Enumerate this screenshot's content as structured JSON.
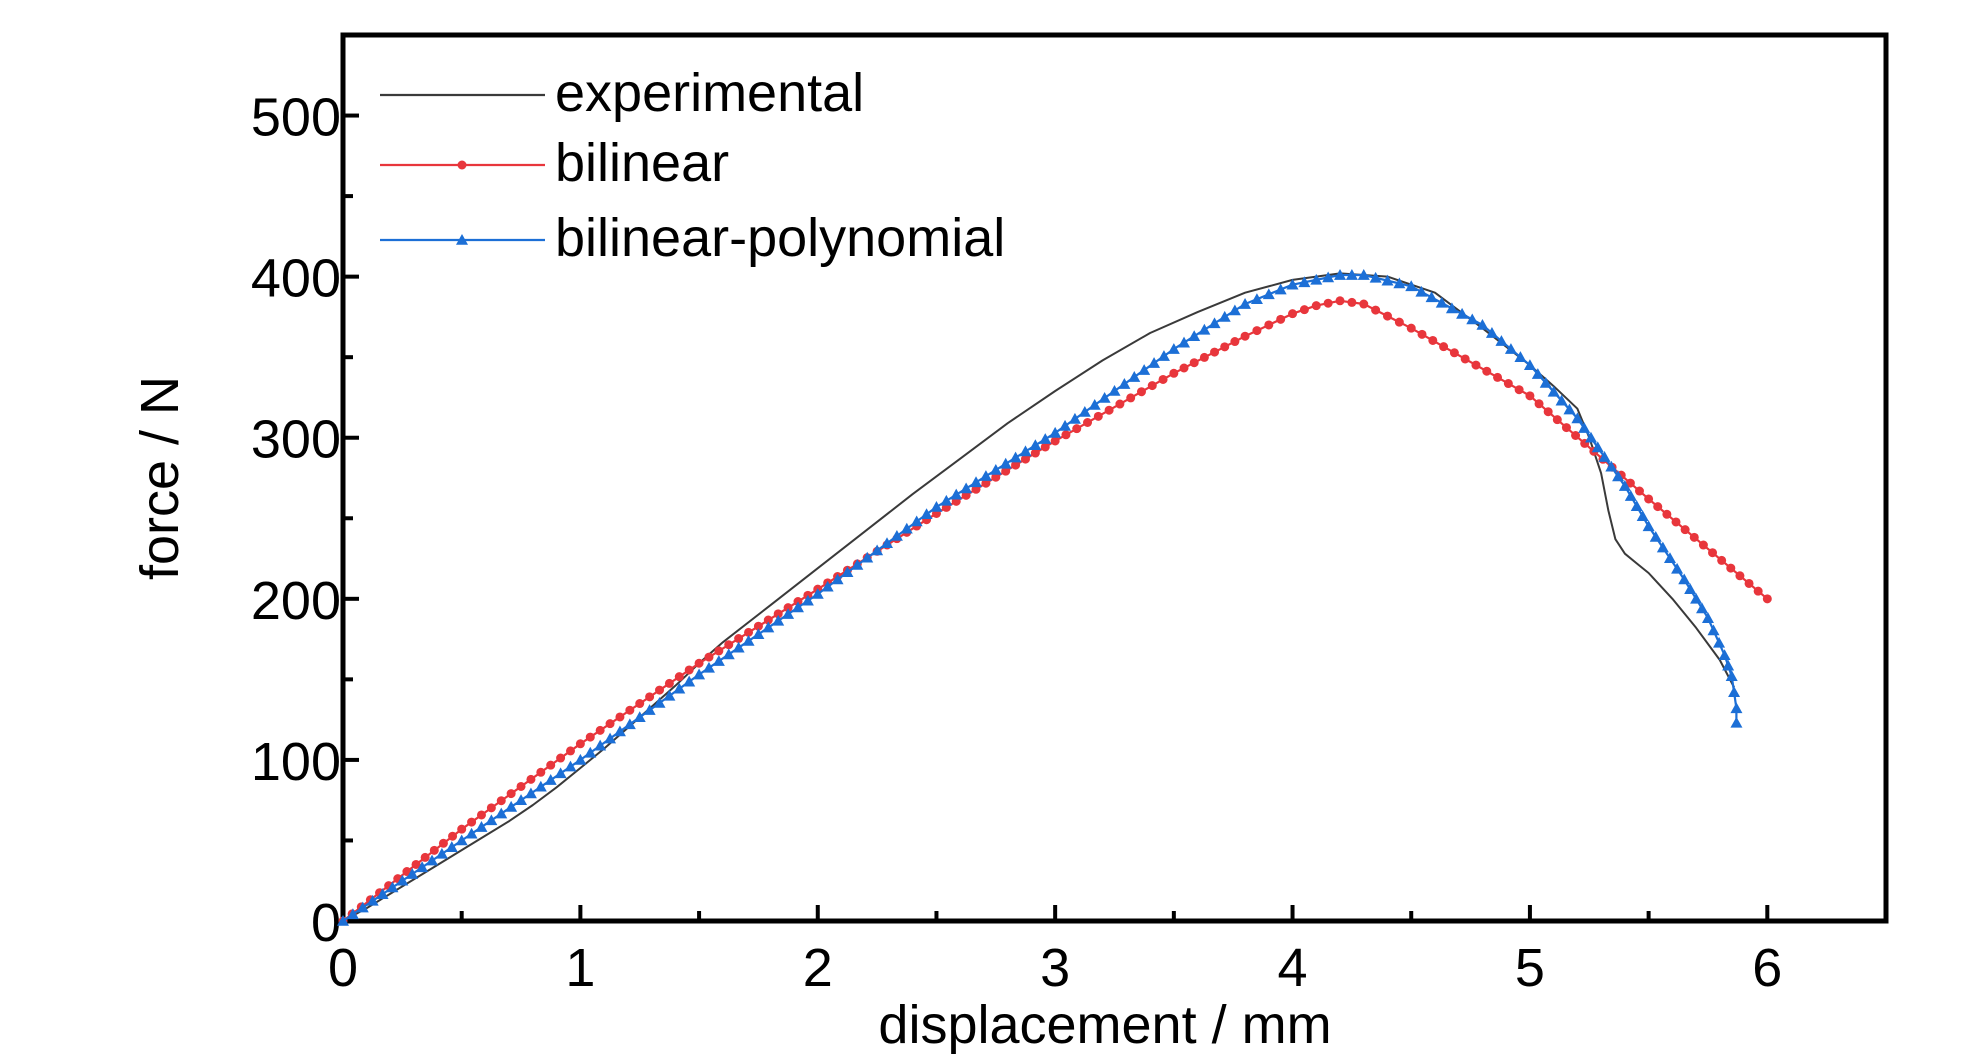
{
  "chart_data": {
    "type": "line",
    "xlabel": "displacement / mm",
    "ylabel": "force / N",
    "xlim": [
      0,
      6.5
    ],
    "ylim": [
      0,
      550
    ],
    "x_ticks": [
      0,
      1,
      2,
      3,
      4,
      5,
      6
    ],
    "x_tick_labels": [
      "0",
      "1",
      "2",
      "3",
      "4",
      "5",
      "6"
    ],
    "x_minor_step": 0.5,
    "y_ticks": [
      0,
      100,
      200,
      300,
      400,
      500
    ],
    "y_tick_labels": [
      "0",
      "100",
      "200",
      "300",
      "400",
      "500"
    ],
    "y_minor_step": 50,
    "grid": false,
    "legend_position": "top-left",
    "series": [
      {
        "name": "experimental",
        "color": "#3a3a3a",
        "marker": "none",
        "x": [
          0,
          0.1,
          0.2,
          0.3,
          0.4,
          0.5,
          0.6,
          0.7,
          0.8,
          0.9,
          1.0,
          1.1,
          1.2,
          1.3,
          1.4,
          1.5,
          1.6,
          1.8,
          2.0,
          2.2,
          2.4,
          2.6,
          2.8,
          3.0,
          3.2,
          3.4,
          3.6,
          3.8,
          4.0,
          4.2,
          4.4,
          4.6,
          4.8,
          5.0,
          5.1,
          5.2,
          5.25,
          5.3,
          5.33,
          5.36,
          5.4,
          5.45,
          5.5,
          5.6,
          5.7,
          5.8,
          5.86
        ],
        "y": [
          0,
          8,
          17,
          26,
          35,
          44,
          53,
          62,
          72,
          83,
          95,
          107,
          120,
          133,
          146,
          160,
          173,
          196,
          219,
          242,
          265,
          287,
          309,
          329,
          348,
          365,
          378,
          390,
          398,
          402,
          400,
          390,
          368,
          345,
          332,
          318,
          300,
          278,
          255,
          237,
          228,
          222,
          216,
          200,
          182,
          162,
          145
        ]
      },
      {
        "name": "bilinear",
        "color": "#e8363c",
        "marker": "circle",
        "x": [
          0,
          0.5,
          1.0,
          1.5,
          2.0,
          2.5,
          3.0,
          3.5,
          3.8,
          4.0,
          4.1,
          4.2,
          4.3,
          4.5,
          5.0,
          5.5,
          6.0
        ],
        "y": [
          0,
          57,
          110,
          160,
          206,
          253,
          298,
          340,
          363,
          377,
          382,
          385,
          383,
          368,
          326,
          262,
          200
        ]
      },
      {
        "name": "bilinear-polynomial",
        "color": "#1c6fd6",
        "marker": "triangle",
        "x": [
          0,
          0.5,
          1.0,
          1.5,
          2.0,
          2.5,
          3.0,
          3.5,
          3.8,
          4.0,
          4.2,
          4.3,
          4.5,
          4.8,
          5.0,
          5.2,
          5.4,
          5.5,
          5.65,
          5.75,
          5.82,
          5.85,
          5.86,
          5.87,
          5.87
        ],
        "y": [
          0,
          50,
          100,
          153,
          203,
          257,
          303,
          355,
          383,
          395,
          401,
          401,
          394,
          370,
          345,
          312,
          270,
          245,
          212,
          188,
          165,
          152,
          142,
          132,
          123
        ]
      }
    ]
  }
}
